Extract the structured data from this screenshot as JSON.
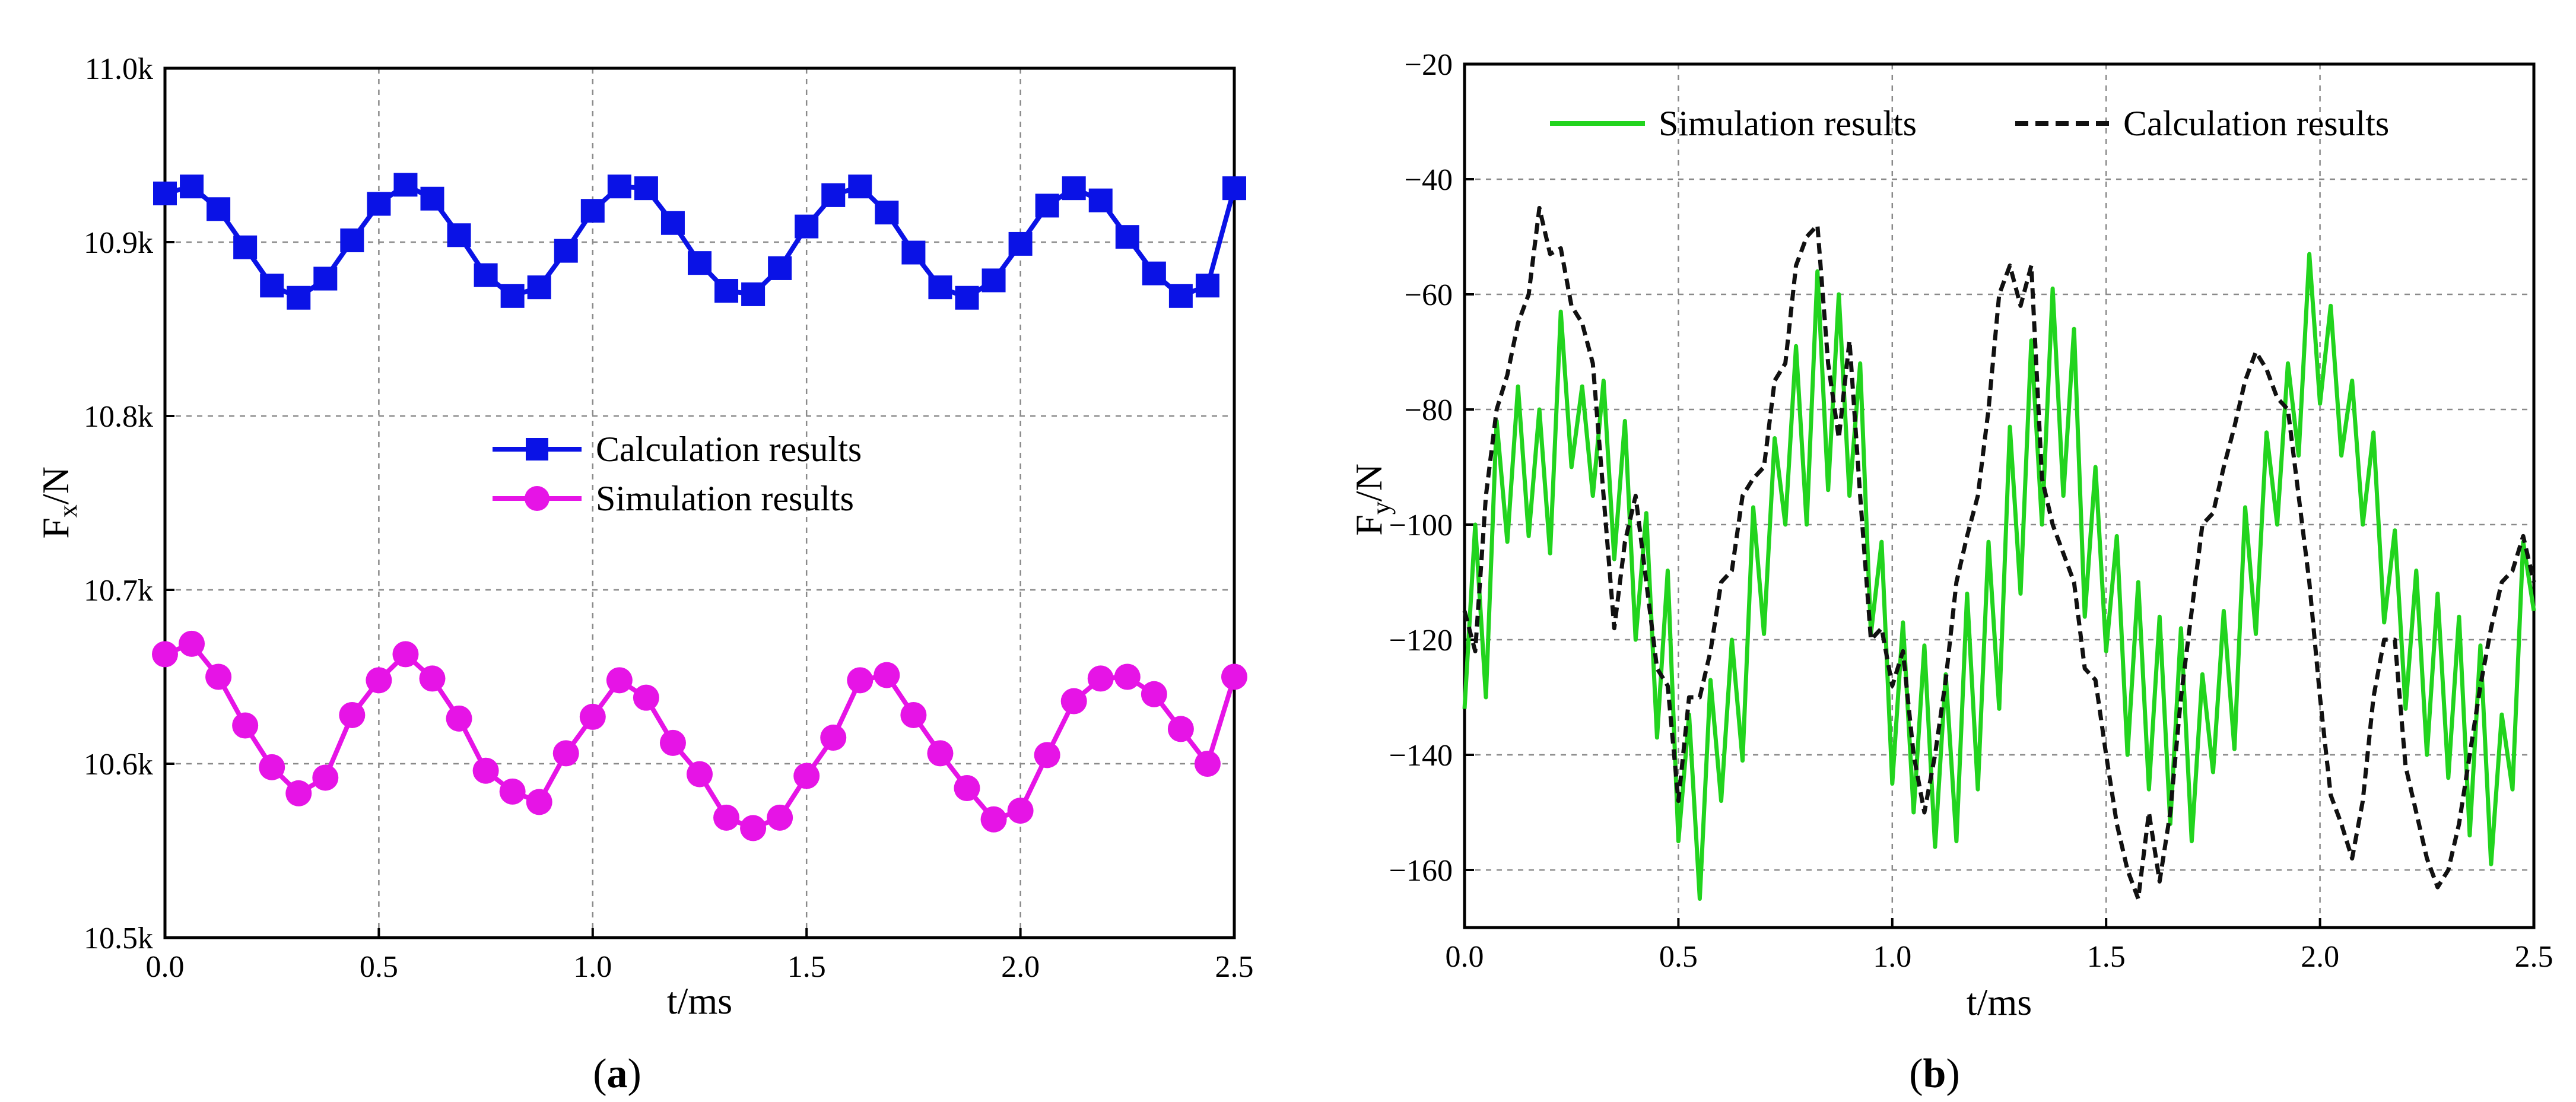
{
  "chart_data": [
    {
      "type": "line",
      "panel_label_prefix": "(",
      "panel_label_letter": "a",
      "panel_label_suffix": ")",
      "xlabel": "t/ms",
      "ylabel_main": "F",
      "ylabel_sub": "x",
      "ylabel_tail": "/N",
      "xlim": [
        0.0,
        2.5
      ],
      "ylim": [
        10500,
        11000
      ],
      "xticks": [
        0.0,
        0.5,
        1.0,
        1.5,
        2.0,
        2.5
      ],
      "xtick_labels": [
        "0.0",
        "0.5",
        "1.0",
        "1.5",
        "2.0",
        "2.5"
      ],
      "yticks": [
        10500,
        10600,
        10700,
        10800,
        10900,
        11000
      ],
      "ytick_labels": [
        "10.5k",
        "10.6k",
        "10.7k",
        "10.8k",
        "10.9k",
        "11.0k"
      ],
      "grid": true,
      "legend_position": "center",
      "series": [
        {
          "name": "Calculation results",
          "color": "#0a12e6",
          "marker": "square",
          "x": [
            0.0,
            0.0625,
            0.125,
            0.1875,
            0.25,
            0.3125,
            0.375,
            0.4375,
            0.5,
            0.5625,
            0.625,
            0.6875,
            0.75,
            0.8125,
            0.875,
            0.9375,
            1.0,
            1.0625,
            1.125,
            1.1875,
            1.25,
            1.3125,
            1.375,
            1.4375,
            1.5,
            1.5625,
            1.625,
            1.6875,
            1.75,
            1.8125,
            1.875,
            1.9375,
            2.0,
            2.0625,
            2.125,
            2.1875,
            2.25,
            2.3125,
            2.375,
            2.4375,
            2.5
          ],
          "values": [
            10928,
            10932,
            10919,
            10897,
            10875,
            10868,
            10879,
            10901,
            10922,
            10933,
            10925,
            10904,
            10881,
            10869,
            10874,
            10895,
            10918,
            10932,
            10931,
            10911,
            10888,
            10872,
            10870,
            10885,
            10909,
            10927,
            10932,
            10917,
            10894,
            10874,
            10868,
            10878,
            10899,
            10921,
            10931,
            10924,
            10903,
            10882,
            10869,
            10875,
            10931
          ]
        },
        {
          "name": "Simulation results",
          "color": "#e614e6",
          "marker": "circle",
          "x": [
            0.0,
            0.0625,
            0.125,
            0.1875,
            0.25,
            0.3125,
            0.375,
            0.4375,
            0.5,
            0.5625,
            0.625,
            0.6875,
            0.75,
            0.8125,
            0.875,
            0.9375,
            1.0,
            1.0625,
            1.125,
            1.1875,
            1.25,
            1.3125,
            1.375,
            1.4375,
            1.5,
            1.5625,
            1.625,
            1.6875,
            1.75,
            1.8125,
            1.875,
            1.9375,
            2.0,
            2.0625,
            2.125,
            2.1875,
            2.25,
            2.3125,
            2.375,
            2.4375,
            2.5
          ],
          "values": [
            10663,
            10669,
            10650,
            10622,
            10598,
            10583,
            10592,
            10628,
            10648,
            10663,
            10649,
            10626,
            10596,
            10584,
            10578,
            10606,
            10627,
            10648,
            10638,
            10612,
            10594,
            10569,
            10563,
            10569,
            10593,
            10615,
            10648,
            10651,
            10628,
            10606,
            10586,
            10568,
            10573,
            10605,
            10636,
            10649,
            10650,
            10640,
            10620,
            10600,
            10650
          ]
        }
      ]
    },
    {
      "type": "line",
      "panel_label_prefix": "(",
      "panel_label_letter": "b",
      "panel_label_suffix": ")",
      "xlabel": "t/ms",
      "ylabel_main": "F",
      "ylabel_sub": "y",
      "ylabel_tail": "/N",
      "xlim": [
        0.0,
        2.5
      ],
      "ylim": [
        -170,
        -20
      ],
      "xticks": [
        0.0,
        0.5,
        1.0,
        1.5,
        2.0,
        2.5
      ],
      "xtick_labels": [
        "0.0",
        "0.5",
        "1.0",
        "1.5",
        "2.0",
        "2.5"
      ],
      "yticks": [
        -160,
        -140,
        -120,
        -100,
        -80,
        -60,
        -40,
        -20
      ],
      "ytick_labels": [
        "−160",
        "−140",
        "−120",
        "−100",
        "−80",
        "−60",
        "−40",
        "−20"
      ],
      "grid": true,
      "legend_position": "top",
      "series": [
        {
          "name": "Simulation results",
          "color": "#22d41e",
          "style": "solid",
          "x": [
            0.0,
            0.025,
            0.05,
            0.075,
            0.1,
            0.125,
            0.15,
            0.175,
            0.2,
            0.225,
            0.25,
            0.275,
            0.3,
            0.325,
            0.35,
            0.375,
            0.4,
            0.425,
            0.45,
            0.475,
            0.5,
            0.525,
            0.55,
            0.575,
            0.6,
            0.625,
            0.65,
            0.675,
            0.7,
            0.725,
            0.75,
            0.775,
            0.8,
            0.825,
            0.85,
            0.875,
            0.9,
            0.925,
            0.95,
            0.975,
            1.0,
            1.025,
            1.05,
            1.075,
            1.1,
            1.125,
            1.15,
            1.175,
            1.2,
            1.225,
            1.25,
            1.275,
            1.3,
            1.325,
            1.35,
            1.375,
            1.4,
            1.425,
            1.45,
            1.475,
            1.5,
            1.525,
            1.55,
            1.575,
            1.6,
            1.625,
            1.65,
            1.675,
            1.7,
            1.725,
            1.75,
            1.775,
            1.8,
            1.825,
            1.85,
            1.875,
            1.9,
            1.925,
            1.95,
            1.975,
            2.0,
            2.025,
            2.05,
            2.075,
            2.1,
            2.125,
            2.15,
            2.175,
            2.2,
            2.225,
            2.25,
            2.275,
            2.3,
            2.325,
            2.35,
            2.375,
            2.4,
            2.425,
            2.45,
            2.475,
            2.5
          ],
          "values": [
            -132,
            -100,
            -130,
            -82,
            -103,
            -76,
            -102,
            -80,
            -105,
            -63,
            -90,
            -76,
            -95,
            -75,
            -106,
            -82,
            -120,
            -98,
            -137,
            -108,
            -155,
            -133,
            -165,
            -127,
            -148,
            -120,
            -141,
            -97,
            -119,
            -85,
            -100,
            -69,
            -100,
            -56,
            -94,
            -60,
            -95,
            -72,
            -119,
            -103,
            -145,
            -117,
            -150,
            -121,
            -156,
            -126,
            -155,
            -112,
            -146,
            -103,
            -132,
            -83,
            -112,
            -68,
            -100,
            -59,
            -95,
            -66,
            -116,
            -90,
            -122,
            -102,
            -140,
            -110,
            -146,
            -116,
            -152,
            -118,
            -155,
            -126,
            -143,
            -115,
            -139,
            -97,
            -119,
            -84,
            -100,
            -72,
            -88,
            -53,
            -79,
            -62,
            -88,
            -75,
            -100,
            -84,
            -117,
            -101,
            -132,
            -108,
            -140,
            -112,
            -144,
            -116,
            -154,
            -121,
            -159,
            -133,
            -146,
            -103,
            -115
          ]
        },
        {
          "name": "Calculation results",
          "color": "#111111",
          "style": "dashed",
          "x": [
            0.0,
            0.025,
            0.05,
            0.075,
            0.1,
            0.125,
            0.15,
            0.175,
            0.2,
            0.225,
            0.25,
            0.275,
            0.3,
            0.325,
            0.35,
            0.375,
            0.4,
            0.425,
            0.45,
            0.475,
            0.5,
            0.525,
            0.55,
            0.575,
            0.6,
            0.625,
            0.65,
            0.675,
            0.7,
            0.725,
            0.75,
            0.775,
            0.8,
            0.825,
            0.85,
            0.875,
            0.9,
            0.925,
            0.95,
            0.975,
            1.0,
            1.025,
            1.05,
            1.075,
            1.1,
            1.125,
            1.15,
            1.175,
            1.2,
            1.225,
            1.25,
            1.275,
            1.3,
            1.325,
            1.35,
            1.375,
            1.4,
            1.425,
            1.45,
            1.475,
            1.5,
            1.525,
            1.55,
            1.575,
            1.6,
            1.625,
            1.65,
            1.675,
            1.7,
            1.725,
            1.75,
            1.775,
            1.8,
            1.825,
            1.85,
            1.875,
            1.9,
            1.925,
            1.95,
            1.975,
            2.0,
            2.025,
            2.05,
            2.075,
            2.1,
            2.125,
            2.15,
            2.175,
            2.2,
            2.225,
            2.25,
            2.275,
            2.3,
            2.325,
            2.35,
            2.375,
            2.4,
            2.425,
            2.45,
            2.475,
            2.5
          ],
          "values": [
            -115,
            -122,
            -95,
            -80,
            -74,
            -65,
            -60,
            -45,
            -53,
            -52,
            -62,
            -65,
            -72,
            -95,
            -118,
            -103,
            -95,
            -110,
            -125,
            -128,
            -148,
            -130,
            -130,
            -122,
            -110,
            -108,
            -95,
            -92,
            -90,
            -75,
            -72,
            -55,
            -50,
            -48,
            -72,
            -85,
            -68,
            -95,
            -120,
            -118,
            -128,
            -122,
            -140,
            -150,
            -140,
            -127,
            -110,
            -102,
            -95,
            -80,
            -60,
            -55,
            -62,
            -55,
            -92,
            -100,
            -105,
            -110,
            -125,
            -127,
            -140,
            -152,
            -160,
            -165,
            -150,
            -162,
            -150,
            -130,
            -115,
            -100,
            -98,
            -90,
            -83,
            -75,
            -70,
            -73,
            -78,
            -80,
            -95,
            -110,
            -130,
            -147,
            -152,
            -158,
            -148,
            -130,
            -120,
            -120,
            -142,
            -150,
            -158,
            -163,
            -160,
            -152,
            -140,
            -128,
            -118,
            -110,
            -108,
            -102,
            -110
          ]
        }
      ]
    }
  ]
}
